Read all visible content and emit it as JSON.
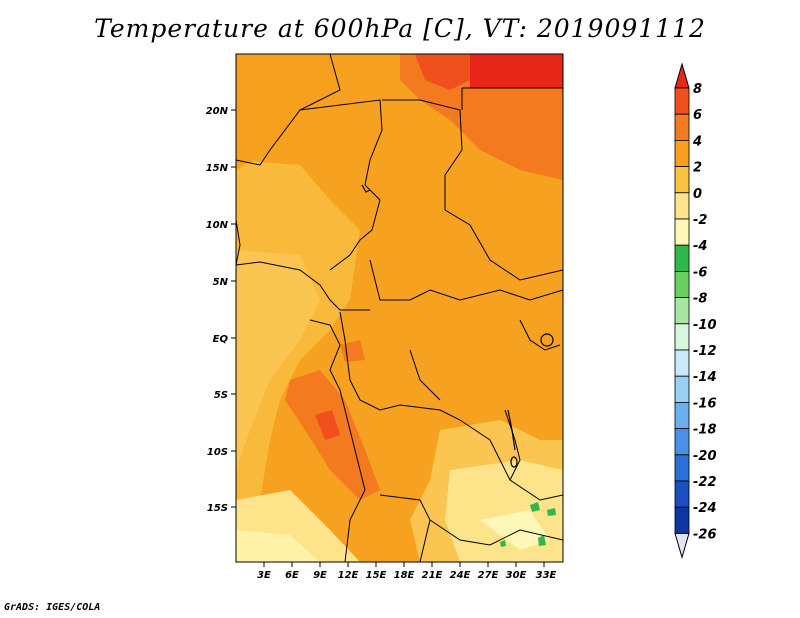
{
  "title": "Temperature at 600hPa [C], VT: 2019091112",
  "footer": "GrADS: IGES/COLA",
  "map": {
    "lat_labels": [
      "20N",
      "15N",
      "10N",
      "5N",
      "EQ",
      "5S",
      "10S",
      "15S"
    ],
    "lon_labels": [
      "3E",
      "6E",
      "9E",
      "12E",
      "15E",
      "18E",
      "21E",
      "24E",
      "27E",
      "30E",
      "33E"
    ],
    "background_color": "#f5a623"
  },
  "colorbar": {
    "labels": [
      "8",
      "6",
      "4",
      "2",
      "0",
      "-2",
      "-4",
      "-6",
      "-8",
      "-10",
      "-12",
      "-14",
      "-16",
      "-18",
      "-20",
      "-22",
      "-24",
      "-26"
    ],
    "colors": [
      "#e8261a",
      "#f0501e",
      "#f37a1e",
      "#f7a01e",
      "#f9c341",
      "#fde38a",
      "#fef8b8",
      "#2fb84a",
      "#69d060",
      "#a5e6a0",
      "#d7f5df",
      "#c9e9fb",
      "#98d0f3",
      "#6bb0ec",
      "#4a91e6",
      "#2b6fd9",
      "#1a50c2",
      "#0e36a0",
      "#0a1f78"
    ]
  }
}
